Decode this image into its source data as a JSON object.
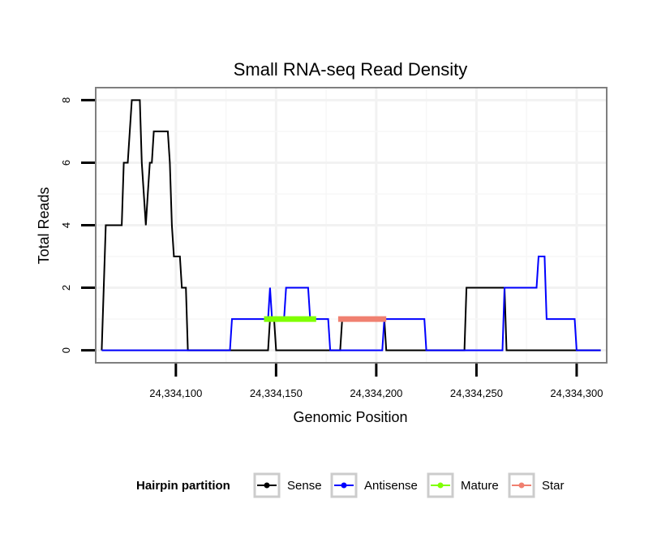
{
  "chart_data": {
    "type": "line",
    "title": "Small RNA-seq Read Density",
    "xlabel": "Genomic Position",
    "ylabel": "Total Reads",
    "xlim": [
      24334060,
      24334315
    ],
    "ylim": [
      -0.4,
      8.4
    ],
    "x_ticks": [
      24334100,
      24334150,
      24334200,
      24334250,
      24334300
    ],
    "x_tick_labels": [
      "24,334,100",
      "24,334,150",
      "24,334,200",
      "24,334,250",
      "24,334,300"
    ],
    "y_ticks": [
      0,
      2,
      4,
      6,
      8
    ],
    "y_tick_labels": [
      "0",
      "2",
      "4",
      "6",
      "8"
    ],
    "grid": true,
    "legend": {
      "title": "Hairpin partition",
      "position": "bottom",
      "entries": [
        "Sense",
        "Antisense",
        "Mature",
        "Star"
      ]
    },
    "series": [
      {
        "name": "Sense",
        "color": "#000000",
        "style": "line",
        "points": [
          [
            24334063,
            0
          ],
          [
            24334064,
            2
          ],
          [
            24334065,
            4
          ],
          [
            24334073,
            4
          ],
          [
            24334074,
            6
          ],
          [
            24334076,
            6
          ],
          [
            24334077,
            7
          ],
          [
            24334078,
            8
          ],
          [
            24334082,
            8
          ],
          [
            24334083,
            6
          ],
          [
            24334084,
            5
          ],
          [
            24334085,
            4
          ],
          [
            24334086,
            5
          ],
          [
            24334087,
            6
          ],
          [
            24334088,
            6
          ],
          [
            24334089,
            7
          ],
          [
            24334096,
            7
          ],
          [
            24334097,
            6
          ],
          [
            24334098,
            4
          ],
          [
            24334099,
            3
          ],
          [
            24334102,
            3
          ],
          [
            24334103,
            2
          ],
          [
            24334105,
            2
          ],
          [
            24334106,
            0
          ],
          [
            24334146,
            0
          ],
          [
            24334147,
            1
          ],
          [
            24334149,
            1
          ],
          [
            24334150,
            0
          ],
          [
            24334182,
            0
          ],
          [
            24334183,
            1
          ],
          [
            24334204,
            1
          ],
          [
            24334205,
            0
          ],
          [
            24334244,
            0
          ],
          [
            24334245,
            2
          ],
          [
            24334264,
            2
          ],
          [
            24334265,
            0
          ],
          [
            24334312,
            0
          ]
        ]
      },
      {
        "name": "Antisense",
        "color": "#0000ff",
        "style": "line",
        "points": [
          [
            24334063,
            0
          ],
          [
            24334127,
            0
          ],
          [
            24334128,
            1
          ],
          [
            24334146,
            1
          ],
          [
            24334147,
            2
          ],
          [
            24334148,
            1
          ],
          [
            24334154,
            1
          ],
          [
            24334155,
            2
          ],
          [
            24334166,
            2
          ],
          [
            24334167,
            1
          ],
          [
            24334176,
            1
          ],
          [
            24334177,
            0
          ],
          [
            24334203,
            0
          ],
          [
            24334204,
            1
          ],
          [
            24334224,
            1
          ],
          [
            24334225,
            0
          ],
          [
            24334263,
            0
          ],
          [
            24334264,
            2
          ],
          [
            24334280,
            2
          ],
          [
            24334281,
            3
          ],
          [
            24334284,
            3
          ],
          [
            24334285,
            1
          ],
          [
            24334299,
            1
          ],
          [
            24334300,
            0
          ],
          [
            24334312,
            0
          ]
        ]
      },
      {
        "name": "Mature",
        "color": "#7fff00",
        "style": "segment",
        "points": [
          [
            24334144,
            1
          ],
          [
            24334170,
            1
          ]
        ]
      },
      {
        "name": "Star",
        "color": "#f08070",
        "style": "segment",
        "points": [
          [
            24334181,
            1
          ],
          [
            24334205,
            1
          ]
        ]
      }
    ]
  }
}
